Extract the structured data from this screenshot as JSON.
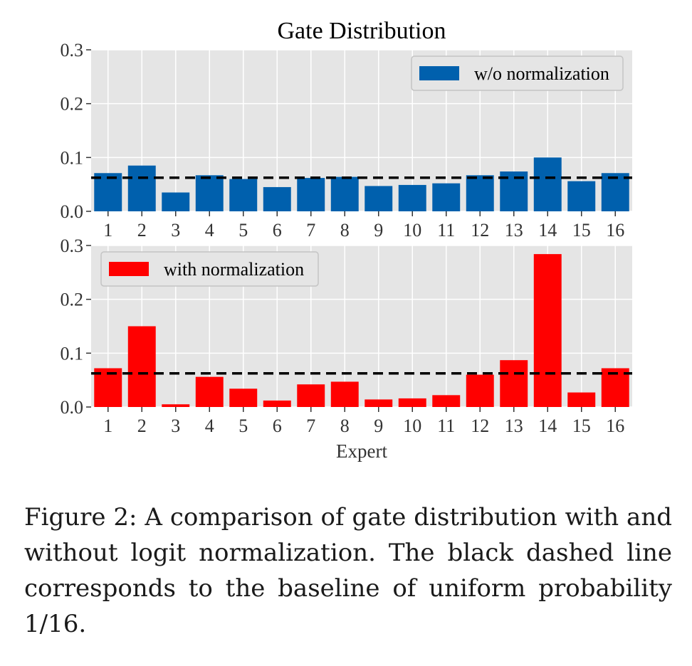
{
  "chart_data": [
    {
      "type": "bar",
      "title": "Gate Distribution",
      "xlabel": "",
      "ylabel": "",
      "categories": [
        "1",
        "2",
        "3",
        "4",
        "5",
        "6",
        "7",
        "8",
        "9",
        "10",
        "11",
        "12",
        "13",
        "14",
        "15",
        "16"
      ],
      "series": [
        {
          "name": "w/o normalization",
          "color": "#0060ad",
          "values": [
            0.071,
            0.085,
            0.035,
            0.067,
            0.06,
            0.045,
            0.062,
            0.064,
            0.047,
            0.049,
            0.052,
            0.067,
            0.074,
            0.1,
            0.056,
            0.071
          ]
        }
      ],
      "baseline": 0.0625,
      "ylim": [
        0,
        0.3
      ],
      "yticks": [
        "0.0",
        "0.1",
        "0.2",
        "0.3"
      ],
      "grid": true,
      "legend": "top-right"
    },
    {
      "type": "bar",
      "title": "",
      "xlabel": "Expert",
      "ylabel": "",
      "categories": [
        "1",
        "2",
        "3",
        "4",
        "5",
        "6",
        "7",
        "8",
        "9",
        "10",
        "11",
        "12",
        "13",
        "14",
        "15",
        "16"
      ],
      "series": [
        {
          "name": "with normalization",
          "color": "#ff0000",
          "values": [
            0.072,
            0.15,
            0.005,
            0.056,
            0.034,
            0.012,
            0.042,
            0.047,
            0.014,
            0.016,
            0.022,
            0.06,
            0.087,
            0.284,
            0.027,
            0.072
          ]
        }
      ],
      "baseline": 0.0625,
      "ylim": [
        0,
        0.3
      ],
      "yticks": [
        "0.0",
        "0.1",
        "0.2",
        "0.3"
      ],
      "grid": true,
      "legend": "top-left"
    }
  ],
  "caption": "Figure 2: A comparison of gate distribution with and without logit normalization. The black dashed line corresponds to the baseline of uniform probability 1/16."
}
